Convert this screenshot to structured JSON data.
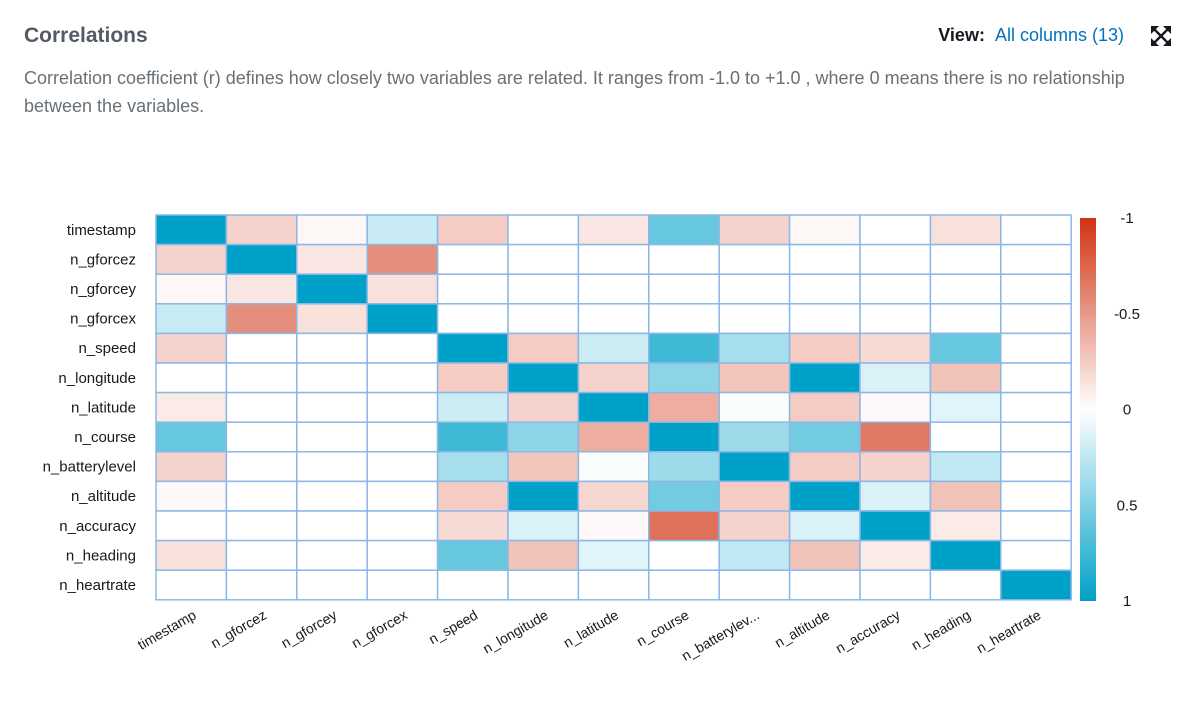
{
  "header": {
    "title": "Correlations",
    "view_label": "View:",
    "view_value": "All columns (13)",
    "expand_icon": "expand-icon"
  },
  "description": "Correlation coefficient (r) defines how closely two variables are related. It ranges from -1.0 to +1.0 , where 0 means there is no relationship between the variables.",
  "chart_data": {
    "type": "heatmap",
    "title": "Correlations",
    "row_labels": [
      "timestamp",
      "n_gforcez",
      "n_gforcey",
      "n_gforcex",
      "n_speed",
      "n_longitude",
      "n_latitude",
      "n_course",
      "n_batterylevel",
      "n_altitude",
      "n_accuracy",
      "n_heading",
      "n_heartrate"
    ],
    "column_labels": [
      "timestamp",
      "n_gforcez",
      "n_gforcey",
      "n_gforcex",
      "n_speed",
      "n_longitude",
      "n_latitude",
      "n_course",
      "n_batterylev...",
      "n_altitude",
      "n_accuracy",
      "n_heading",
      "n_heartrate"
    ],
    "values": [
      [
        1.0,
        -0.22,
        -0.04,
        0.22,
        -0.25,
        0.0,
        -0.12,
        0.6,
        -0.22,
        -0.04,
        0.0,
        -0.15,
        0.0
      ],
      [
        -0.22,
        1.0,
        -0.12,
        -0.55,
        0.0,
        0.0,
        0.0,
        0.0,
        0.0,
        0.0,
        0.0,
        0.0,
        0.0
      ],
      [
        -0.04,
        -0.12,
        1.0,
        -0.15,
        0.0,
        0.0,
        0.0,
        0.0,
        0.0,
        0.0,
        0.0,
        0.0,
        0.0
      ],
      [
        0.22,
        -0.55,
        -0.15,
        1.0,
        0.0,
        0.0,
        0.0,
        0.0,
        0.0,
        0.0,
        0.0,
        0.0,
        0.0
      ],
      [
        -0.22,
        0.0,
        0.0,
        0.0,
        1.0,
        -0.25,
        0.2,
        0.75,
        0.35,
        -0.25,
        -0.18,
        0.6,
        0.0
      ],
      [
        0.0,
        0.0,
        0.0,
        0.0,
        -0.25,
        1.0,
        -0.22,
        0.45,
        -0.28,
        1.0,
        0.15,
        -0.3,
        0.0
      ],
      [
        -0.1,
        0.0,
        0.0,
        0.0,
        0.2,
        -0.22,
        1.0,
        -0.4,
        0.02,
        -0.25,
        -0.03,
        0.12,
        0.0
      ],
      [
        0.6,
        0.0,
        0.0,
        0.0,
        0.75,
        0.45,
        -0.4,
        1.0,
        0.38,
        0.55,
        -0.65,
        0.0,
        0.0
      ],
      [
        -0.22,
        0.0,
        0.0,
        0.0,
        0.35,
        -0.28,
        0.02,
        0.38,
        1.0,
        -0.25,
        -0.22,
        0.25,
        0.0
      ],
      [
        -0.03,
        0.0,
        0.0,
        0.0,
        -0.25,
        1.0,
        -0.2,
        0.55,
        -0.25,
        1.0,
        0.15,
        -0.3,
        0.0
      ],
      [
        0.0,
        0.0,
        0.0,
        0.0,
        -0.18,
        0.15,
        -0.03,
        -0.7,
        -0.22,
        0.15,
        1.0,
        -0.1,
        0.0
      ],
      [
        -0.15,
        0.0,
        0.0,
        0.0,
        0.6,
        -0.3,
        0.12,
        0.0,
        0.25,
        -0.3,
        -0.1,
        1.0,
        0.0
      ],
      [
        0.0,
        0.0,
        0.0,
        0.0,
        0.0,
        0.0,
        0.0,
        0.0,
        0.0,
        0.0,
        0.0,
        0.0,
        1.0
      ]
    ],
    "color_scale": {
      "range": [
        -1,
        1
      ],
      "ticks": [
        {
          "value": -1,
          "label": "-1"
        },
        {
          "value": -0.5,
          "label": "-0.5"
        },
        {
          "value": 0,
          "label": "0"
        },
        {
          "value": 0.5,
          "label": "0.5"
        },
        {
          "value": 1,
          "label": "1"
        }
      ],
      "negative_color": "#d13212",
      "neutral_color": "#ffffff",
      "positive_color": "#00a1c9"
    },
    "grid_color": "#8cb8e6"
  }
}
